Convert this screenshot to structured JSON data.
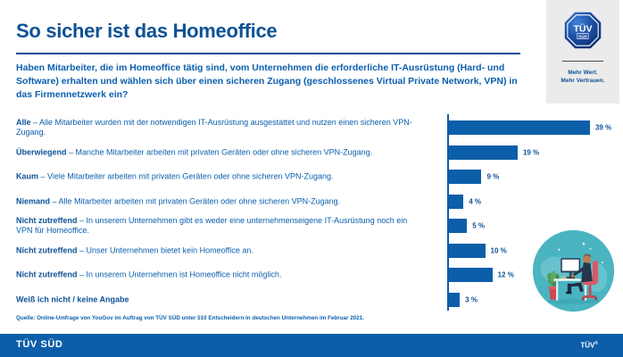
{
  "header": {
    "title": "So sicher ist das Homeoffice",
    "question": "Haben Mitarbeiter, die im Homeoffice tätig sind, vom Unternehmen die erforderliche IT-Ausrüstung (Hard- und Software) erhalten und wählen sich über einen sicheren Zugang (geschlossenes Virtual Private Network, VPN) in das Firmennetzwerk ein?"
  },
  "brand_panel": {
    "logo_top": "TÜV",
    "logo_bottom": "SÜD",
    "tagline_line1": "Mehr Wert.",
    "tagline_line2": "Mehr Vertrauen."
  },
  "chart_data": {
    "type": "bar",
    "orientation": "horizontal",
    "unit": "%",
    "xlim": [
      0,
      40
    ],
    "grid": false,
    "legend": false,
    "bar_color": "#0c5ea9",
    "separator": "–",
    "categories": [
      "Alle",
      "Überwiegend",
      "Kaum",
      "Niemand",
      "Nicht zutreffend",
      "Nicht zutreffend",
      "Nicht zutreffend",
      "Weiß ich nicht / keine Angabe"
    ],
    "values": [
      39,
      19,
      9,
      4,
      5,
      10,
      12,
      3
    ],
    "rows": [
      {
        "label": "Alle",
        "description": "Alle Mitarbeiter wurden mit der notwendigen IT-Ausrüstung ausgestattet und nutzen einen sicheren VPN-Zugang.",
        "value": 39,
        "value_label": "39 %"
      },
      {
        "label": "Überwiegend",
        "description": "Manche Mitarbeiter arbeiten mit privaten Geräten oder ohne sicheren VPN-Zugang.",
        "value": 19,
        "value_label": "19 %"
      },
      {
        "label": "Kaum",
        "description": "Viele Mitarbeiter arbeiten mit privaten Geräten oder ohne sicheren VPN-Zugang.",
        "value": 9,
        "value_label": "9 %"
      },
      {
        "label": "Niemand",
        "description": "Alle Mitarbeiter arbeiten mit privaten Geräten oder ohne sicheren VPN-Zugang.",
        "value": 4,
        "value_label": "4 %"
      },
      {
        "label": "Nicht zutreffend",
        "description": "In unserem Unternehmen gibt es weder eine unternehmenseigene IT-Ausrüstung noch ein VPN für Homeoffice.",
        "value": 5,
        "value_label": "5 %"
      },
      {
        "label": "Nicht zutreffend",
        "description": "Unser Unternehmen bietet kein Homeoffice an.",
        "value": 10,
        "value_label": "10 %"
      },
      {
        "label": "Nicht zutreffend",
        "description": "In unserem Unternehmen ist Homeoffice nicht möglich.",
        "value": 12,
        "value_label": "12 %"
      },
      {
        "label": "Weiß ich nicht / keine Angabe",
        "description": "",
        "value": 3,
        "value_label": "3 %"
      }
    ]
  },
  "source": "Quelle: Online-Umfrage von YouGov im Auftrag von TÜV SÜD unter 510 Entscheidern in deutschen Unternehmen im Februar 2021.",
  "footer": {
    "brand": "TÜV SÜD",
    "trademark": "TÜV",
    "registered": "®"
  },
  "colors": {
    "primary_blue": "#0c5ea9",
    "title_blue": "#0e5195",
    "panel_gray": "#ebebeb",
    "illustration_teal": "#4ab4c1",
    "chair_red": "#d95a66",
    "white": "#ffffff"
  }
}
